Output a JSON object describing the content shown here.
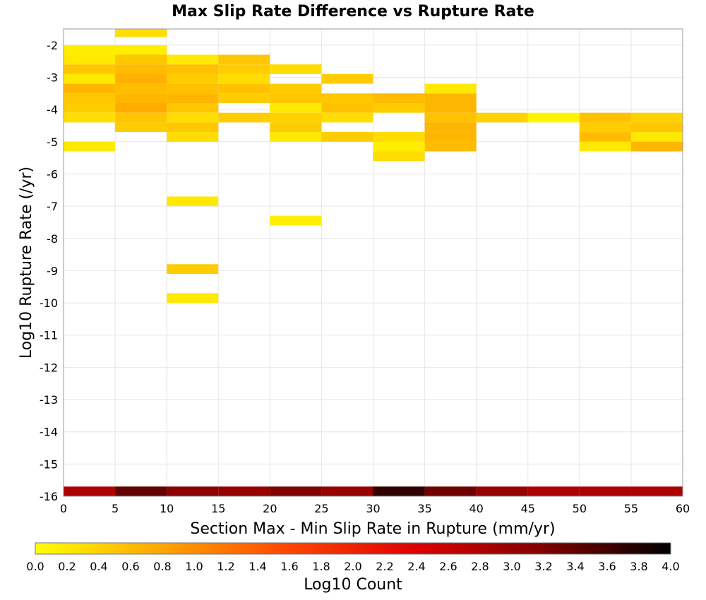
{
  "chart_data": {
    "type": "heatmap",
    "title": "Max Slip Rate Difference vs Rupture Rate",
    "xlabel": "Section Max - Min Slip Rate in Rupture (mm/yr)",
    "ylabel": "Log10 Rupture Rate (/yr)",
    "xlim": [
      0,
      60
    ],
    "ylim": [
      -16,
      -1.5
    ],
    "x_ticks": [
      "0",
      "5",
      "10",
      "15",
      "20",
      "25",
      "30",
      "35",
      "40",
      "45",
      "50",
      "55",
      "60"
    ],
    "y_ticks": [
      "-2",
      "-3",
      "-4",
      "-5",
      "-6",
      "-7",
      "-8",
      "-9",
      "-10",
      "-11",
      "-12",
      "-13",
      "-14",
      "-15",
      "-16"
    ],
    "x_bin_width": 5,
    "y_bin_height": 0.3,
    "grid": true,
    "colorbar": {
      "label": "Log10 Count",
      "range": [
        0,
        4
      ],
      "ticks": [
        "0.0",
        "0.2",
        "0.4",
        "0.6",
        "0.8",
        "1.0",
        "1.2",
        "1.4",
        "1.6",
        "1.8",
        "2.0",
        "2.2",
        "2.4",
        "2.6",
        "2.8",
        "3.0",
        "3.2",
        "3.4",
        "3.6",
        "3.8",
        "4.0"
      ],
      "colors": [
        "#ffff00",
        "#ffa500",
        "#ff4500",
        "#dd0000",
        "#800000",
        "#000000"
      ]
    },
    "cells": [
      {
        "x": 0,
        "y": -2.15,
        "v": 0.15
      },
      {
        "x": 0,
        "y": -2.45,
        "v": 0.2
      },
      {
        "x": 0,
        "y": -2.75,
        "v": 0.5
      },
      {
        "x": 0,
        "y": -3.05,
        "v": 0.2
      },
      {
        "x": 0,
        "y": -3.35,
        "v": 0.65
      },
      {
        "x": 0,
        "y": -3.65,
        "v": 0.5
      },
      {
        "x": 0,
        "y": -3.95,
        "v": 0.45
      },
      {
        "x": 0,
        "y": -4.25,
        "v": 0.3
      },
      {
        "x": 0,
        "y": -5.15,
        "v": 0.2
      },
      {
        "x": 5,
        "y": -1.6,
        "v": 0.3
      },
      {
        "x": 5,
        "y": -2.15,
        "v": 0.15
      },
      {
        "x": 5,
        "y": -2.45,
        "v": 0.5
      },
      {
        "x": 5,
        "y": -2.75,
        "v": 0.6
      },
      {
        "x": 5,
        "y": -3.05,
        "v": 0.7
      },
      {
        "x": 5,
        "y": -3.35,
        "v": 0.6
      },
      {
        "x": 5,
        "y": -3.65,
        "v": 0.65
      },
      {
        "x": 5,
        "y": -3.95,
        "v": 0.75
      },
      {
        "x": 5,
        "y": -4.25,
        "v": 0.5
      },
      {
        "x": 5,
        "y": -4.55,
        "v": 0.45
      },
      {
        "x": 10,
        "y": -2.45,
        "v": 0.2
      },
      {
        "x": 10,
        "y": -2.75,
        "v": 0.55
      },
      {
        "x": 10,
        "y": -3.05,
        "v": 0.45
      },
      {
        "x": 10,
        "y": -3.35,
        "v": 0.55
      },
      {
        "x": 10,
        "y": -3.65,
        "v": 0.65
      },
      {
        "x": 10,
        "y": -3.95,
        "v": 0.5
      },
      {
        "x": 10,
        "y": -4.25,
        "v": 0.3
      },
      {
        "x": 10,
        "y": -4.55,
        "v": 0.5
      },
      {
        "x": 10,
        "y": -4.85,
        "v": 0.3
      },
      {
        "x": 10,
        "y": -6.85,
        "v": 0.2
      },
      {
        "x": 10,
        "y": -8.95,
        "v": 0.45
      },
      {
        "x": 10,
        "y": -9.85,
        "v": 0.2
      },
      {
        "x": 15,
        "y": -2.45,
        "v": 0.5
      },
      {
        "x": 15,
        "y": -2.75,
        "v": 0.45
      },
      {
        "x": 15,
        "y": -3.05,
        "v": 0.3
      },
      {
        "x": 15,
        "y": -3.35,
        "v": 0.55
      },
      {
        "x": 15,
        "y": -3.65,
        "v": 0.45
      },
      {
        "x": 15,
        "y": -4.25,
        "v": 0.45
      },
      {
        "x": 20,
        "y": -2.75,
        "v": 0.3
      },
      {
        "x": 20,
        "y": -3.35,
        "v": 0.45
      },
      {
        "x": 20,
        "y": -3.65,
        "v": 0.5
      },
      {
        "x": 20,
        "y": -3.95,
        "v": 0.2
      },
      {
        "x": 20,
        "y": -4.25,
        "v": 0.4
      },
      {
        "x": 20,
        "y": -4.55,
        "v": 0.45
      },
      {
        "x": 20,
        "y": -4.85,
        "v": 0.2
      },
      {
        "x": 20,
        "y": -7.45,
        "v": 0.15
      },
      {
        "x": 25,
        "y": -3.05,
        "v": 0.45
      },
      {
        "x": 25,
        "y": -3.65,
        "v": 0.5
      },
      {
        "x": 25,
        "y": -3.95,
        "v": 0.55
      },
      {
        "x": 25,
        "y": -4.25,
        "v": 0.3
      },
      {
        "x": 25,
        "y": -4.85,
        "v": 0.45
      },
      {
        "x": 30,
        "y": -3.65,
        "v": 0.6
      },
      {
        "x": 30,
        "y": -3.95,
        "v": 0.45
      },
      {
        "x": 30,
        "y": -4.85,
        "v": 0.3
      },
      {
        "x": 30,
        "y": -5.15,
        "v": 0.15
      },
      {
        "x": 30,
        "y": -5.45,
        "v": 0.3
      },
      {
        "x": 35,
        "y": -3.35,
        "v": 0.2
      },
      {
        "x": 35,
        "y": -3.65,
        "v": 0.65
      },
      {
        "x": 35,
        "y": -3.95,
        "v": 0.65
      },
      {
        "x": 35,
        "y": -4.25,
        "v": 0.55
      },
      {
        "x": 35,
        "y": -4.55,
        "v": 0.65
      },
      {
        "x": 35,
        "y": -4.85,
        "v": 0.65
      },
      {
        "x": 35,
        "y": -5.15,
        "v": 0.6
      },
      {
        "x": 40,
        "y": -4.25,
        "v": 0.4
      },
      {
        "x": 45,
        "y": -4.25,
        "v": 0.1
      },
      {
        "x": 50,
        "y": -4.25,
        "v": 0.55
      },
      {
        "x": 50,
        "y": -4.55,
        "v": 0.45
      },
      {
        "x": 50,
        "y": -4.85,
        "v": 0.6
      },
      {
        "x": 50,
        "y": -5.15,
        "v": 0.2
      },
      {
        "x": 55,
        "y": -4.25,
        "v": 0.4
      },
      {
        "x": 55,
        "y": -4.55,
        "v": 0.5
      },
      {
        "x": 55,
        "y": -4.85,
        "v": 0.2
      },
      {
        "x": 55,
        "y": -5.15,
        "v": 0.65
      },
      {
        "x": 0,
        "y": -15.85,
        "v": 2.8
      },
      {
        "x": 5,
        "y": -15.85,
        "v": 3.4
      },
      {
        "x": 10,
        "y": -15.85,
        "v": 3.1
      },
      {
        "x": 15,
        "y": -15.85,
        "v": 3.0
      },
      {
        "x": 20,
        "y": -15.85,
        "v": 3.2
      },
      {
        "x": 25,
        "y": -15.85,
        "v": 3.0
      },
      {
        "x": 30,
        "y": -15.85,
        "v": 3.7
      },
      {
        "x": 35,
        "y": -15.85,
        "v": 3.3
      },
      {
        "x": 40,
        "y": -15.85,
        "v": 3.0
      },
      {
        "x": 45,
        "y": -15.85,
        "v": 2.8
      },
      {
        "x": 50,
        "y": -15.85,
        "v": 2.8
      },
      {
        "x": 55,
        "y": -15.85,
        "v": 2.8
      }
    ]
  }
}
